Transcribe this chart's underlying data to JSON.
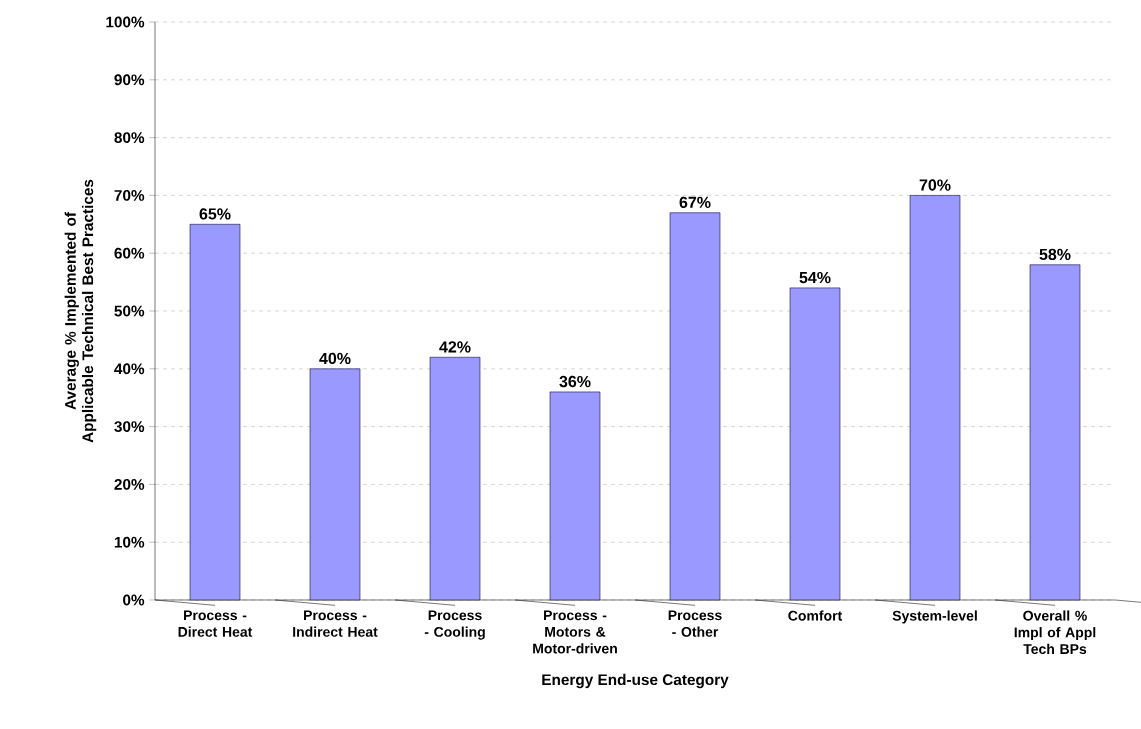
{
  "chart_data": {
    "type": "bar",
    "xlabel": "Energy End-use Category",
    "ylabel": "Average % Implemented of Applicable Technical Best Practices",
    "categories": [
      "Process - Direct Heat",
      "Process - Indirect Heat",
      "Process - Cooling",
      "Process - Motors & Motor-driven",
      "Process - Other",
      "Comfort",
      "System-level",
      "Overall % Impl of Appl Tech BPs"
    ],
    "values": [
      65,
      40,
      42,
      36,
      67,
      54,
      70,
      58
    ],
    "value_labels": [
      "65%",
      "40%",
      "42%",
      "36%",
      "67%",
      "54%",
      "70%",
      "58%"
    ],
    "color": "#9999ff",
    "ylim": [
      0,
      100
    ],
    "yticks": [
      {
        "value": 0,
        "label": "0%"
      },
      {
        "value": 10,
        "label": "10%"
      },
      {
        "value": 20,
        "label": "20%"
      },
      {
        "value": 30,
        "label": "30%"
      },
      {
        "value": 40,
        "label": "40%"
      },
      {
        "value": 50,
        "label": "50%"
      },
      {
        "value": 60,
        "label": "60%"
      },
      {
        "value": 70,
        "label": "70%"
      },
      {
        "value": 80,
        "label": "80%"
      },
      {
        "value": 90,
        "label": "90%"
      },
      {
        "value": 100,
        "label": "100%"
      }
    ],
    "grid": "y"
  }
}
